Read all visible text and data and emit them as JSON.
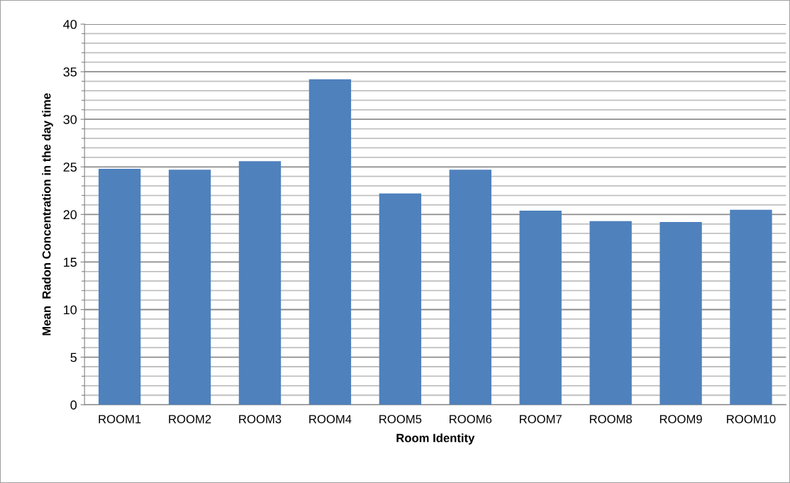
{
  "chart_data": {
    "type": "bar",
    "xlabel": "Room Identity",
    "ylabel": "Mean  Radon Concentration in the day time",
    "categories": [
      "ROOM1",
      "ROOM2",
      "ROOM3",
      "ROOM4",
      "ROOM5",
      "ROOM6",
      "ROOM7",
      "ROOM8",
      "ROOM9",
      "ROOM10"
    ],
    "values": [
      24.8,
      24.7,
      25.6,
      34.2,
      22.2,
      24.7,
      20.4,
      19.3,
      19.2,
      20.5
    ],
    "color": "#4f81bd",
    "ylim": [
      0,
      40
    ],
    "yticks": [
      0,
      {
        "value": 1,
        "label": null
      },
      {
        "value": 2,
        "label": null
      },
      {
        "value": 3,
        "label": null
      },
      {
        "value": 4,
        "label": null
      },
      5,
      {
        "value": 6,
        "label": null
      },
      {
        "value": 7,
        "label": null
      },
      {
        "value": 8,
        "label": null
      },
      {
        "value": 9,
        "label": null
      },
      10,
      {
        "value": 11,
        "label": null
      },
      {
        "value": 12,
        "label": null
      },
      {
        "value": 13,
        "label": null
      },
      {
        "value": 14,
        "label": null
      },
      15,
      {
        "value": 16,
        "label": null
      },
      {
        "value": 17,
        "label": null
      },
      {
        "value": 18,
        "label": null
      },
      {
        "value": 19,
        "label": null
      },
      20,
      {
        "value": 21,
        "label": null
      },
      {
        "value": 22,
        "label": null
      },
      {
        "value": 23,
        "label": null
      },
      {
        "value": 24,
        "label": null
      },
      25,
      {
        "value": 26,
        "label": null
      },
      {
        "value": 27,
        "label": null
      },
      {
        "value": 28,
        "label": null
      },
      {
        "value": 29,
        "label": null
      },
      30,
      {
        "value": 31,
        "label": null
      },
      {
        "value": 32,
        "label": null
      },
      {
        "value": 33,
        "label": null
      },
      {
        "value": 34,
        "label": null
      },
      35,
      {
        "value": 36,
        "label": null
      },
      {
        "value": 37,
        "label": null
      },
      {
        "value": 38,
        "label": null
      },
      {
        "value": 39,
        "label": null
      },
      40
    ],
    "grid": "y"
  }
}
